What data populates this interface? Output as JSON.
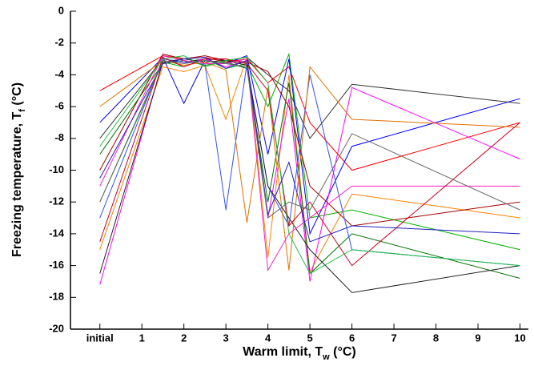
{
  "chart_data": {
    "type": "line",
    "x_label": [
      "Warm limit, T",
      "w",
      " (°C)"
    ],
    "y_label": [
      "Freezing temperature, T",
      "f",
      " (°C)"
    ],
    "x": [
      0,
      1.5,
      2,
      2.5,
      3,
      3.5,
      4,
      4.5,
      5,
      6,
      10
    ],
    "xlim": [
      -0.7,
      10.2
    ],
    "xticks": [
      {
        "value": 0,
        "label": "initial"
      },
      1,
      2,
      3,
      4,
      5,
      6,
      7,
      8,
      9,
      10
    ],
    "ylim": [
      -20,
      0
    ],
    "yticks": [
      0,
      -2,
      -4,
      -6,
      -8,
      -10,
      -12,
      -14,
      -16,
      -18,
      -20
    ],
    "series": [
      {
        "color": "#333333",
        "values": [
          -8,
          -3,
          -3.2,
          -3,
          -3.1,
          -2.9,
          -4,
          -5,
          -8,
          -4.6,
          -5.8
        ]
      },
      {
        "color": "#ff0000",
        "values": [
          -5,
          -2.8,
          -3,
          -2.9,
          -3.2,
          -3,
          -4.5,
          -3.5,
          -7,
          -10,
          -7
        ]
      },
      {
        "color": "#00b000",
        "values": [
          -12,
          -3.2,
          -3.5,
          -3,
          -3.6,
          -3.3,
          -6,
          -2.7,
          -13,
          -12.5,
          -15
        ]
      },
      {
        "color": "#0000ff",
        "values": [
          -7,
          -2.9,
          -5.8,
          -3.1,
          -3.3,
          -2.8,
          -9,
          -3,
          -14,
          -8.5,
          -5.5
        ]
      },
      {
        "color": "#ff8000",
        "values": [
          -15,
          -3.5,
          -3.8,
          -3.4,
          -6.8,
          -2.9,
          -15.5,
          -4,
          -16.4,
          -11.5,
          -13
        ]
      },
      {
        "color": "#ff00ff",
        "values": [
          -17.2,
          -3.1,
          -3.3,
          -3,
          -3.5,
          -3.1,
          -13,
          -5.5,
          -17,
          -4.8,
          -9.3
        ]
      },
      {
        "color": "#a00000",
        "values": [
          -10,
          -2.7,
          -3,
          -2.8,
          -3.1,
          -3.2,
          -3.8,
          -6,
          -11,
          -13.5,
          -12
        ]
      },
      {
        "color": "#007000",
        "values": [
          -9,
          -3.3,
          -3.1,
          -3.4,
          -3.2,
          -3.6,
          -12,
          -4.5,
          -16.5,
          -14,
          -16.8
        ]
      },
      {
        "color": "#3050ff",
        "values": [
          -13,
          -3,
          -3.2,
          -3.3,
          -12.5,
          -3.3,
          -11,
          -13.5,
          -4,
          -15,
          -16
        ]
      },
      {
        "color": "#222222",
        "values": [
          -16.5,
          -3.2,
          -3,
          -3.2,
          -3.1,
          -3.4,
          -11,
          -13,
          -15,
          -17.7,
          -16
        ]
      },
      {
        "color": "#e07000",
        "values": [
          -6,
          -3.1,
          -3.4,
          -3.2,
          -3.7,
          -13.3,
          -4.8,
          -16.3,
          -3.5,
          -6.8,
          -7.3
        ]
      },
      {
        "color": "#ff20c0",
        "values": [
          -11,
          -2.8,
          -3.1,
          -3.3,
          -3.3,
          -3,
          -16.3,
          -14,
          -13,
          -11,
          -11
        ]
      },
      {
        "color": "#d00020",
        "values": [
          -14.5,
          -2.9,
          -3.5,
          -3,
          -3,
          -3.3,
          -5,
          -13.5,
          -12,
          -16,
          -7
        ]
      },
      {
        "color": "#20c040",
        "values": [
          -8.5,
          -3,
          -2.8,
          -3.5,
          -3.1,
          -2.9,
          -4.5,
          -14,
          -16.5,
          -15,
          -16
        ]
      },
      {
        "color": "#2020c0",
        "values": [
          -10.5,
          -3.3,
          -3,
          -2.9,
          -3.6,
          -3.1,
          -12.8,
          -9.5,
          -14.5,
          -13.5,
          -14
        ]
      },
      {
        "color": "#666666",
        "values": [
          -12,
          -3.1,
          -3.3,
          -3.1,
          -3.3,
          -3.5,
          -13,
          -12,
          -12.5,
          -7.7,
          -12.5
        ]
      }
    ]
  }
}
